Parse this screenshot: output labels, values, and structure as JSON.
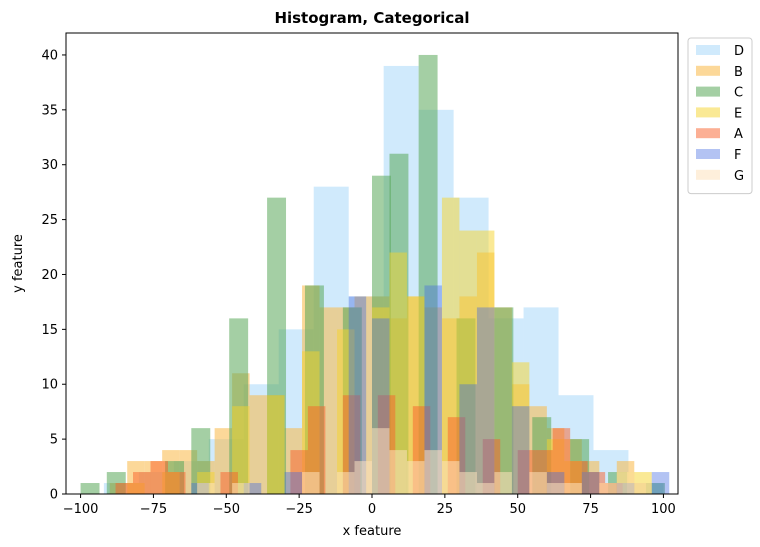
{
  "chart_data": {
    "type": "bar",
    "title": "Histogram, Categorical",
    "xlabel": "x feature",
    "ylabel": "y feature",
    "xlim": [
      -105,
      105
    ],
    "ylim": [
      0,
      42
    ],
    "xticks": [
      -100,
      -75,
      -50,
      -25,
      0,
      25,
      50,
      75,
      100
    ],
    "yticks": [
      0,
      5,
      10,
      15,
      20,
      25,
      30,
      35,
      40
    ],
    "grid": false,
    "legend_position": "outside upper right",
    "series": [
      {
        "name": "D",
        "color": "#a9d8f9",
        "opacity": 0.55,
        "bin_width": 12,
        "bins": [
          [
            -92,
            1
          ],
          [
            -80,
            2
          ],
          [
            -68,
            3
          ],
          [
            -56,
            5
          ],
          [
            -44,
            10
          ],
          [
            -32,
            15
          ],
          [
            -20,
            28
          ],
          [
            -8,
            18
          ],
          [
            4,
            39
          ],
          [
            16,
            35
          ],
          [
            28,
            27
          ],
          [
            40,
            16
          ],
          [
            52,
            17
          ],
          [
            64,
            9
          ],
          [
            76,
            4
          ],
          [
            88,
            1
          ]
        ]
      },
      {
        "name": "B",
        "color": "#f9b845",
        "opacity": 0.55,
        "bin_width": 6,
        "bins": [
          [
            -90,
            1
          ],
          [
            -84,
            3
          ],
          [
            -78,
            3
          ],
          [
            -72,
            4
          ],
          [
            -66,
            4
          ],
          [
            -60,
            3
          ],
          [
            -54,
            6
          ],
          [
            -48,
            11
          ],
          [
            -42,
            9
          ],
          [
            -36,
            9
          ],
          [
            -30,
            6
          ],
          [
            -24,
            19
          ],
          [
            -18,
            17
          ],
          [
            -12,
            17
          ],
          [
            -6,
            18
          ],
          [
            0,
            18
          ],
          [
            6,
            16
          ],
          [
            12,
            18
          ],
          [
            18,
            17
          ],
          [
            24,
            16
          ],
          [
            30,
            18
          ],
          [
            36,
            22
          ],
          [
            42,
            17
          ],
          [
            48,
            10
          ],
          [
            54,
            8
          ],
          [
            60,
            6
          ],
          [
            66,
            5
          ],
          [
            72,
            3
          ],
          [
            78,
            1
          ],
          [
            84,
            3
          ],
          [
            90,
            1
          ]
        ]
      },
      {
        "name": "C",
        "color": "#5aa75a",
        "opacity": 0.55,
        "bin_width": 6.5,
        "bins": [
          [
            -100,
            1
          ],
          [
            -91,
            2
          ],
          [
            -71,
            3
          ],
          [
            -62,
            6
          ],
          [
            -49,
            16
          ],
          [
            -36,
            27
          ],
          [
            -23,
            19
          ],
          [
            -10,
            17
          ],
          [
            0,
            29
          ],
          [
            6,
            31
          ],
          [
            16,
            40
          ],
          [
            29,
            16
          ],
          [
            42,
            17
          ],
          [
            55,
            7
          ],
          [
            68,
            5
          ],
          [
            81,
            2
          ],
          [
            94,
            1
          ]
        ]
      },
      {
        "name": "E",
        "color": "#f6d32b",
        "opacity": 0.5,
        "bin_width": 6,
        "bins": [
          [
            -84,
            1
          ],
          [
            -72,
            2
          ],
          [
            -60,
            2
          ],
          [
            -48,
            8
          ],
          [
            -36,
            9
          ],
          [
            -24,
            13
          ],
          [
            -12,
            15
          ],
          [
            0,
            17
          ],
          [
            6,
            22
          ],
          [
            12,
            18
          ],
          [
            24,
            27
          ],
          [
            30,
            24
          ],
          [
            36,
            24
          ],
          [
            48,
            12
          ],
          [
            60,
            5
          ],
          [
            66,
            3
          ],
          [
            72,
            2
          ],
          [
            84,
            2
          ],
          [
            90,
            2
          ]
        ]
      },
      {
        "name": "A",
        "color": "#f9602a",
        "opacity": 0.5,
        "bin_width": 6,
        "bins": [
          [
            -88,
            1
          ],
          [
            -82,
            2
          ],
          [
            -76,
            3
          ],
          [
            -70,
            2
          ],
          [
            -52,
            2
          ],
          [
            -28,
            4
          ],
          [
            -22,
            8
          ],
          [
            -10,
            9
          ],
          [
            2,
            9
          ],
          [
            14,
            8
          ],
          [
            26,
            7
          ],
          [
            38,
            5
          ],
          [
            50,
            4
          ],
          [
            56,
            4
          ],
          [
            62,
            6
          ],
          [
            68,
            3
          ],
          [
            74,
            2
          ],
          [
            80,
            1
          ]
        ]
      },
      {
        "name": "F",
        "color": "#4169e1",
        "opacity": 0.4,
        "bin_width": 6,
        "bins": [
          [
            -62,
            1
          ],
          [
            -44,
            1
          ],
          [
            -30,
            2
          ],
          [
            -8,
            18
          ],
          [
            0,
            16
          ],
          [
            18,
            19
          ],
          [
            30,
            10
          ],
          [
            36,
            17
          ],
          [
            48,
            8
          ],
          [
            60,
            2
          ],
          [
            72,
            2
          ],
          [
            84,
            1
          ],
          [
            96,
            2
          ]
        ]
      },
      {
        "name": "G",
        "color": "#fde1bd",
        "opacity": 0.55,
        "bin_width": 6,
        "bins": [
          [
            -60,
            1
          ],
          [
            -48,
            1
          ],
          [
            -24,
            2
          ],
          [
            -12,
            2
          ],
          [
            -6,
            3
          ],
          [
            0,
            6
          ],
          [
            6,
            4
          ],
          [
            12,
            3
          ],
          [
            18,
            4
          ],
          [
            24,
            3
          ],
          [
            30,
            2
          ],
          [
            36,
            1
          ],
          [
            42,
            2
          ],
          [
            54,
            2
          ],
          [
            60,
            1
          ],
          [
            66,
            1
          ],
          [
            78,
            1
          ],
          [
            84,
            2
          ],
          [
            90,
            1
          ]
        ]
      }
    ],
    "legend_order": [
      "D",
      "B",
      "C",
      "E",
      "A",
      "F",
      "G"
    ]
  }
}
